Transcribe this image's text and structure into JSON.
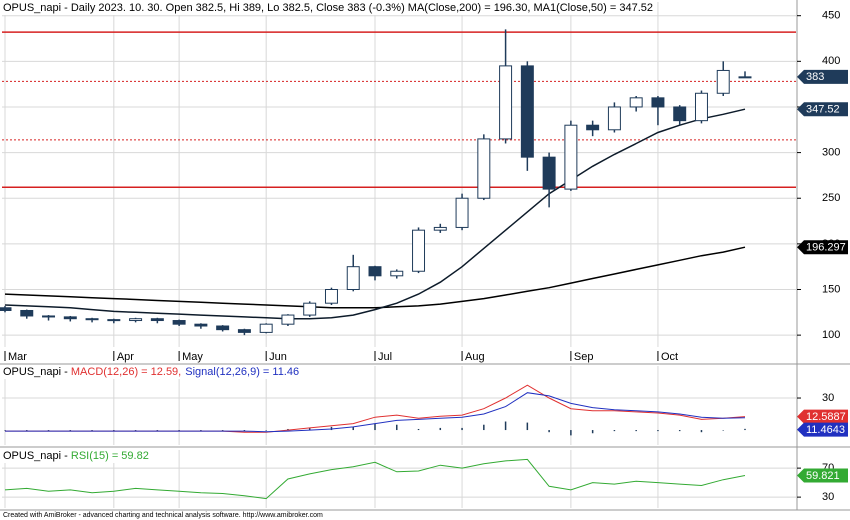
{
  "chart_data": [
    {
      "type": "candlestick",
      "title": "OPUS_napi - Daily 2023. 10. 30. Open 382.5, Hi 389, Lo 382.5, Close 383 (-0.3%) MA(Close,200) = 196.30, MA1(Close,50) = 347.52",
      "categories": [
        "Mar",
        null,
        null,
        null,
        null,
        "Apr",
        null,
        null,
        "May",
        null,
        null,
        null,
        "Jun",
        null,
        null,
        null,
        null,
        "Jul",
        null,
        null,
        null,
        "Aug",
        null,
        null,
        null,
        null,
        "Sep",
        null,
        null,
        null,
        "Oct",
        null,
        null,
        null,
        null
      ],
      "open": [
        130,
        127,
        121,
        120,
        118,
        117,
        116,
        118,
        116,
        112,
        110,
        106,
        103,
        112,
        122,
        135,
        150,
        175,
        165,
        170,
        215,
        218,
        250,
        315,
        395,
        295,
        260,
        330,
        325,
        350,
        360,
        350,
        335,
        365,
        382.5
      ],
      "high": [
        132,
        128,
        122,
        121,
        119,
        118,
        119,
        119,
        117,
        113,
        111,
        107,
        113,
        123,
        137,
        152,
        188,
        176,
        172,
        218,
        222,
        255,
        320,
        435,
        400,
        300,
        335,
        335,
        355,
        362,
        362,
        352,
        368,
        400,
        389
      ],
      "low": [
        125,
        118,
        116,
        115,
        114,
        113,
        114,
        113,
        110,
        107,
        104,
        100,
        102,
        110,
        120,
        133,
        148,
        160,
        162,
        168,
        212,
        215,
        248,
        310,
        280,
        240,
        258,
        318,
        322,
        345,
        330,
        330,
        332,
        362,
        382.5
      ],
      "close": [
        127,
        121,
        120,
        118,
        117,
        116,
        118,
        116,
        112,
        110,
        106,
        103,
        112,
        122,
        135,
        150,
        175,
        165,
        170,
        215,
        218,
        250,
        315,
        395,
        295,
        260,
        330,
        325,
        350,
        360,
        350,
        335,
        365,
        390,
        383
      ],
      "color": "#1f3b5a",
      "series": [
        {
          "color": "#000000",
          "values": [
            145,
            144,
            143,
            142,
            141,
            140,
            139,
            138,
            137,
            136,
            135,
            134,
            133,
            132,
            131,
            130,
            130,
            130,
            131,
            132,
            134,
            137,
            140,
            144,
            148,
            152,
            157,
            162,
            167,
            172,
            177,
            182,
            187,
            191,
            196.297
          ]
        },
        {
          "color": "#0d1b2a",
          "values": [
            133,
            132,
            131,
            130,
            128,
            126,
            125,
            124,
            123,
            122,
            121,
            120,
            119,
            118,
            118,
            119,
            122,
            128,
            135,
            145,
            158,
            175,
            195,
            215,
            235,
            255,
            270,
            285,
            298,
            310,
            322,
            330,
            337,
            342,
            347.52
          ]
        }
      ],
      "hlines": [
        {
          "value": 432,
          "color": "#d62020",
          "style": "solid"
        },
        {
          "value": 378,
          "color": "#d62020",
          "style": "dotted"
        },
        {
          "value": 314,
          "color": "#d62020",
          "style": "dotted"
        },
        {
          "value": 262,
          "color": "#d62020",
          "style": "solid"
        }
      ],
      "price_labels": [
        {
          "value": 383,
          "color": "#1f3b5a"
        },
        {
          "value": 347.52,
          "color": "#1f3b5a"
        },
        {
          "value": 196.297,
          "color": "#000000"
        }
      ],
      "ylim": [
        87,
        465
      ],
      "yticks": [
        100,
        150,
        200,
        250,
        300,
        350,
        400,
        450
      ],
      "grid": true
    },
    {
      "type": "line",
      "label": "OPUS_napi - ",
      "series": [
        {
          "name": "MACD(12,26) = 12.59,",
          "color": "#e03030",
          "values": [
            -1,
            -1,
            -1,
            -1,
            -1,
            -1,
            -1,
            -1,
            -1,
            -1,
            -1,
            -2,
            -2,
            0,
            2,
            4,
            6,
            12,
            14,
            11,
            13,
            14,
            20,
            30,
            42,
            30,
            20,
            18,
            18,
            17,
            16,
            14,
            10,
            11,
            12.59
          ]
        },
        {
          "name": "Signal(12,26,9) = 11.46",
          "color": "#2030c0",
          "values": [
            -1,
            -1,
            -1,
            -1,
            -1,
            -1,
            -1,
            -1,
            -1,
            -1,
            -1,
            -1,
            -1.5,
            -1,
            0,
            1,
            3,
            6,
            9,
            10,
            11,
            12,
            15,
            22,
            35,
            32,
            25,
            21,
            19,
            18,
            17,
            15,
            12,
            11,
            11.46
          ]
        }
      ],
      "histogram": {
        "color": "#1f3b5a",
        "values": [
          0,
          0,
          0,
          0,
          0,
          0,
          0,
          0,
          0,
          0,
          0,
          -1,
          -0.5,
          1,
          2,
          3,
          3,
          6,
          5,
          1,
          2,
          2,
          5,
          8,
          7,
          -2,
          -5,
          -3,
          -1,
          -1,
          -1,
          -1,
          -2,
          0,
          1.13
        ]
      },
      "price_labels": [
        {
          "value": 12.5887,
          "color": "#e03030"
        },
        {
          "value": 11.4643,
          "color": "#2030c0"
        }
      ],
      "ylim": [
        -14,
        60
      ],
      "yticks": [
        30
      ],
      "grid": true
    },
    {
      "type": "line",
      "label": "OPUS_napi - ",
      "series": [
        {
          "name": "RSI(15) = 59.82",
          "color": "#33aa33",
          "values": [
            40,
            42,
            38,
            40,
            36,
            38,
            42,
            40,
            38,
            36,
            35,
            32,
            28,
            55,
            62,
            68,
            72,
            78,
            65,
            66,
            74,
            70,
            76,
            80,
            82,
            45,
            40,
            50,
            48,
            52,
            50,
            48,
            46,
            54,
            59.821
          ]
        }
      ],
      "price_labels": [
        {
          "value": 59.821,
          "color": "#33aa33"
        }
      ],
      "ylim": [
        15,
        95
      ],
      "yticks": [
        30,
        70
      ],
      "grid": true
    }
  ],
  "footer": "Created with AmiBroker - advanced charting and technical analysis software. http://www.amibroker.com"
}
